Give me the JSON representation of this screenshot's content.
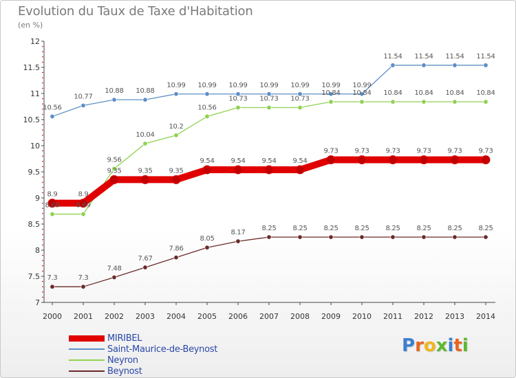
{
  "header": {
    "title": "Evolution du Taux de Taxe d'Habitation",
    "subtitle": "(en %)"
  },
  "logo": {
    "text": "Proxiti",
    "letter_colors": [
      "#3d7fd1",
      "#e8641e",
      "#f2b51d",
      "#5cb82f",
      "#3d7fd1",
      "#e8641e",
      "#5cb82f"
    ]
  },
  "chart_data": {
    "type": "line",
    "categories": [
      "2000",
      "2001",
      "2002",
      "2003",
      "2004",
      "2005",
      "2006",
      "2007",
      "2008",
      "2009",
      "2010",
      "2011",
      "2012",
      "2013",
      "2014"
    ],
    "ylim": [
      7,
      12
    ],
    "yticks": [
      "7",
      "7.5",
      "8",
      "8.5",
      "9",
      "9.5",
      "10",
      "10.5",
      "11",
      "11.5",
      "12"
    ],
    "grid": false,
    "legend_position": "bottom-left",
    "series": [
      {
        "name": "MIRIBEL",
        "color": "#e00000",
        "emphasis": true,
        "values": [
          8.9,
          8.9,
          9.35,
          9.35,
          9.35,
          9.54,
          9.54,
          9.54,
          9.54,
          9.73,
          9.73,
          9.73,
          9.73,
          9.73,
          9.73
        ],
        "labels": [
          "8.9",
          "8.9",
          "9.35",
          "9.35",
          "9.35",
          "9.54",
          "9.54",
          "9.54",
          "9.54",
          "9.73",
          "9.73",
          "9.73",
          "9.73",
          "9.73",
          "9.73"
        ]
      },
      {
        "name": "Saint-Maurice-de-Beynost",
        "color": "#5b8fc7",
        "values": [
          10.56,
          10.77,
          10.88,
          10.88,
          10.99,
          10.99,
          10.99,
          10.99,
          10.99,
          10.99,
          10.99,
          11.54,
          11.54,
          11.54,
          11.54
        ],
        "labels": [
          "10.56",
          "10.77",
          "10.88",
          "10.88",
          "10.99",
          "10.99",
          "10.99",
          "10.99",
          "10.99",
          "10.99",
          "10.99",
          "11.54",
          "11.54",
          "11.54",
          "11.54"
        ]
      },
      {
        "name": "Neyron",
        "color": "#8fd14f",
        "values": [
          8.69,
          8.69,
          9.56,
          10.04,
          10.2,
          10.56,
          10.73,
          10.73,
          10.73,
          10.84,
          10.84,
          10.84,
          10.84,
          10.84,
          10.84
        ],
        "labels": [
          "8.69",
          "8.69",
          "9.56",
          "10.04",
          "10.2",
          "10.56",
          "10.73",
          "10.73",
          "10.73",
          "10.84",
          "10.84",
          "10.84",
          "10.84",
          "10.84",
          "10.84"
        ]
      },
      {
        "name": "Beynost",
        "color": "#6b2a2a",
        "values": [
          7.3,
          7.3,
          7.48,
          7.67,
          7.86,
          8.05,
          8.17,
          8.25,
          8.25,
          8.25,
          8.25,
          8.25,
          8.25,
          8.25,
          8.25
        ],
        "labels": [
          "7.3",
          "7.3",
          "7.48",
          "7.67",
          "7.86",
          "8.05",
          "8.17",
          "8.25",
          "8.25",
          "8.25",
          "8.25",
          "8.25",
          "8.25",
          "8.25",
          "8.25"
        ]
      }
    ]
  }
}
